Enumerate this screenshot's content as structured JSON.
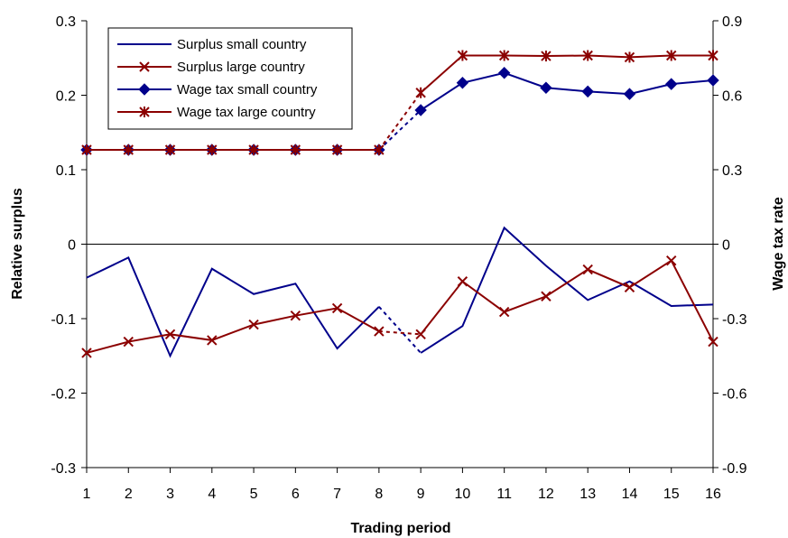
{
  "chart_data": {
    "type": "line",
    "xlabel": "Trading period",
    "ylabel_left": "Relative surplus",
    "ylabel_right": "Wage tax rate",
    "x": [
      1,
      2,
      3,
      4,
      5,
      6,
      7,
      8,
      9,
      10,
      11,
      12,
      13,
      14,
      15,
      16
    ],
    "ylim_left": [
      -0.3,
      0.3
    ],
    "yticks_left": [
      "0.3",
      "0.2",
      "0.1",
      "0",
      "-0.1",
      "-0.2",
      "-0.3"
    ],
    "ylim_right": [
      -0.9,
      0.9
    ],
    "yticks_right": [
      "0.9",
      "0.6",
      "0.3",
      "0",
      "-0.3",
      "-0.6",
      "-0.9"
    ],
    "break_after_period": 8,
    "grid": false,
    "legend_position": "top-left",
    "series": [
      {
        "name": "Surplus small country",
        "axis": "left",
        "marker": "none",
        "color": "#00008B",
        "values": [
          -0.045,
          -0.018,
          -0.15,
          -0.033,
          -0.067,
          -0.053,
          -0.14,
          -0.084,
          -0.146,
          -0.11,
          0.022,
          -0.029,
          -0.075,
          -0.05,
          -0.083,
          -0.081
        ]
      },
      {
        "name": "Surplus large country",
        "axis": "left",
        "marker": "x",
        "color": "#8B0000",
        "values": [
          -0.146,
          -0.131,
          -0.121,
          -0.129,
          -0.108,
          -0.096,
          -0.086,
          -0.117,
          -0.121,
          -0.05,
          -0.091,
          -0.07,
          -0.034,
          -0.058,
          -0.022,
          -0.131
        ]
      },
      {
        "name": "Wage tax small country",
        "axis": "right",
        "marker": "diamond",
        "color": "#00008B",
        "values": [
          0.38,
          0.38,
          0.38,
          0.38,
          0.38,
          0.38,
          0.38,
          0.38,
          0.54,
          0.65,
          0.69,
          0.63,
          0.615,
          0.605,
          0.645,
          0.66
        ]
      },
      {
        "name": "Wage tax large country",
        "axis": "right",
        "marker": "asterisk",
        "color": "#8B0000",
        "values": [
          0.38,
          0.38,
          0.38,
          0.38,
          0.38,
          0.38,
          0.38,
          0.38,
          0.61,
          0.76,
          0.76,
          0.758,
          0.76,
          0.753,
          0.76,
          0.76
        ]
      }
    ]
  }
}
